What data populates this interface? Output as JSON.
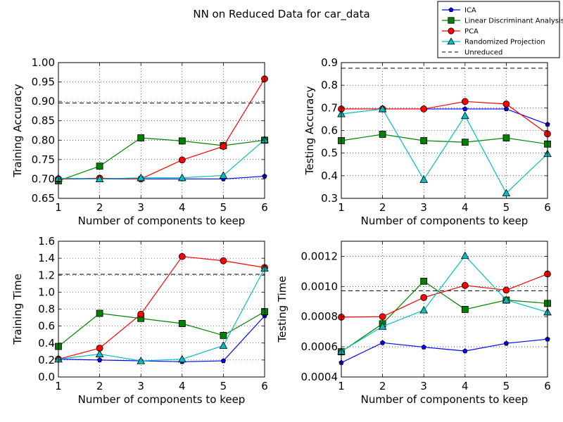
{
  "figure": {
    "title": "NN on Reduced Data for car_data"
  },
  "legend": {
    "placement": "top-right",
    "entries": [
      {
        "label": "ICA",
        "color": "#0000ff",
        "marker": "pentagon"
      },
      {
        "label": "Linear Discriminant Analysis",
        "color": "#008000",
        "marker": "square"
      },
      {
        "label": "PCA",
        "color": "#ff0000",
        "marker": "circle"
      },
      {
        "label": "Randomized Projection",
        "color": "#00bfbf",
        "marker": "triangle"
      },
      {
        "label": "Unreduced",
        "color": "#000000",
        "marker": "dashed-line"
      }
    ]
  },
  "chart_data": [
    {
      "type": "line",
      "xlabel": "Number of components to keep",
      "ylabel": "Training Accuracy",
      "x": [
        1,
        2,
        3,
        4,
        5,
        6
      ],
      "xlim": [
        1,
        6
      ],
      "ylim": [
        0.65,
        1.0
      ],
      "yticks": [
        0.65,
        0.7,
        0.75,
        0.8,
        0.85,
        0.9,
        0.95,
        1.0
      ],
      "ytick_labels": [
        "0.65",
        "0.70",
        "0.75",
        "0.80",
        "0.85",
        "0.90",
        "0.95",
        "1.00"
      ],
      "xtick_labels": [
        "1",
        "2",
        "3",
        "4",
        "5",
        "6"
      ],
      "grid": true,
      "series": [
        {
          "name": "ICA",
          "values": [
            0.7,
            0.7,
            0.7,
            0.7,
            0.7,
            0.707
          ]
        },
        {
          "name": "Linear Discriminant Analysis",
          "values": [
            0.695,
            0.733,
            0.806,
            0.798,
            0.786,
            0.8
          ]
        },
        {
          "name": "PCA",
          "values": [
            0.7,
            0.702,
            0.7,
            0.749,
            0.784,
            0.958
          ]
        },
        {
          "name": "Randomized Projection",
          "values": [
            0.702,
            0.7,
            0.703,
            0.703,
            0.709,
            0.801
          ]
        }
      ],
      "hline": {
        "name": "Unreduced",
        "value": 0.896
      }
    },
    {
      "type": "line",
      "xlabel": "Number of components to keep",
      "ylabel": "Testing Accuracy",
      "x": [
        1,
        2,
        3,
        4,
        5,
        6
      ],
      "xlim": [
        1,
        6
      ],
      "ylim": [
        0.3,
        0.9
      ],
      "yticks": [
        0.3,
        0.4,
        0.5,
        0.6,
        0.7,
        0.8,
        0.9
      ],
      "ytick_labels": [
        "0.3",
        "0.4",
        "0.5",
        "0.6",
        "0.7",
        "0.8",
        "0.9"
      ],
      "xtick_labels": [
        "1",
        "2",
        "3",
        "4",
        "5",
        "6"
      ],
      "grid": true,
      "series": [
        {
          "name": "ICA",
          "values": [
            0.695,
            0.695,
            0.695,
            0.695,
            0.695,
            0.627
          ]
        },
        {
          "name": "Linear Discriminant Analysis",
          "values": [
            0.555,
            0.583,
            0.555,
            0.548,
            0.567,
            0.54
          ]
        },
        {
          "name": "PCA",
          "values": [
            0.695,
            0.695,
            0.695,
            0.728,
            0.717,
            0.585
          ]
        },
        {
          "name": "Randomized Projection",
          "values": [
            0.673,
            0.695,
            0.383,
            0.665,
            0.323,
            0.497
          ]
        }
      ],
      "hline": {
        "name": "Unreduced",
        "value": 0.875
      }
    },
    {
      "type": "line",
      "xlabel": "Number of components to keep",
      "ylabel": "Training Time",
      "x": [
        1,
        2,
        3,
        4,
        5,
        6
      ],
      "xlim": [
        1,
        6
      ],
      "ylim": [
        0.0,
        1.6
      ],
      "yticks": [
        0.0,
        0.2,
        0.4,
        0.6,
        0.8,
        1.0,
        1.2,
        1.4,
        1.6
      ],
      "ytick_labels": [
        "0.0",
        "0.2",
        "0.4",
        "0.6",
        "0.8",
        "1.0",
        "1.2",
        "1.4",
        "1.6"
      ],
      "xtick_labels": [
        "1",
        "2",
        "3",
        "4",
        "5",
        "6"
      ],
      "grid": true,
      "series": [
        {
          "name": "ICA",
          "values": [
            0.21,
            0.2,
            0.19,
            0.18,
            0.19,
            0.72
          ]
        },
        {
          "name": "Linear Discriminant Analysis",
          "values": [
            0.36,
            0.75,
            0.69,
            0.63,
            0.49,
            0.77
          ]
        },
        {
          "name": "PCA",
          "values": [
            0.21,
            0.34,
            0.74,
            1.42,
            1.37,
            1.29
          ]
        },
        {
          "name": "Randomized Projection",
          "values": [
            0.21,
            0.27,
            0.19,
            0.21,
            0.37,
            1.28
          ]
        }
      ],
      "hline": {
        "name": "Unreduced",
        "value": 1.21
      }
    },
    {
      "type": "line",
      "xlabel": "Number of components to keep",
      "ylabel": "Testing Time",
      "x": [
        1,
        2,
        3,
        4,
        5,
        6
      ],
      "xlim": [
        1,
        6
      ],
      "ylim": [
        0.0004,
        0.0013
      ],
      "yticks": [
        0.0004,
        0.0006,
        0.0008,
        0.001,
        0.0012
      ],
      "ytick_labels": [
        "0.0004",
        "0.0006",
        "0.0008",
        "0.0010",
        "0.0012"
      ],
      "xtick_labels": [
        "1",
        "2",
        "3",
        "4",
        "5",
        "6"
      ],
      "grid": true,
      "series": [
        {
          "name": "ICA",
          "values": [
            0.000495,
            0.000627,
            0.000598,
            0.000572,
            0.000623,
            0.000651
          ]
        },
        {
          "name": "Linear Discriminant Analysis",
          "values": [
            0.000567,
            0.000753,
            0.001035,
            0.000848,
            0.00091,
            0.000888
          ]
        },
        {
          "name": "PCA",
          "values": [
            0.000797,
            0.0008,
            0.000927,
            0.001007,
            0.000976,
            0.001083
          ]
        },
        {
          "name": "Randomized Projection",
          "values": [
            0.00057,
            0.000735,
            0.000843,
            0.001204,
            0.00091,
            0.00083
          ]
        }
      ],
      "hline": {
        "name": "Unreduced",
        "value": 0.000972
      }
    }
  ]
}
